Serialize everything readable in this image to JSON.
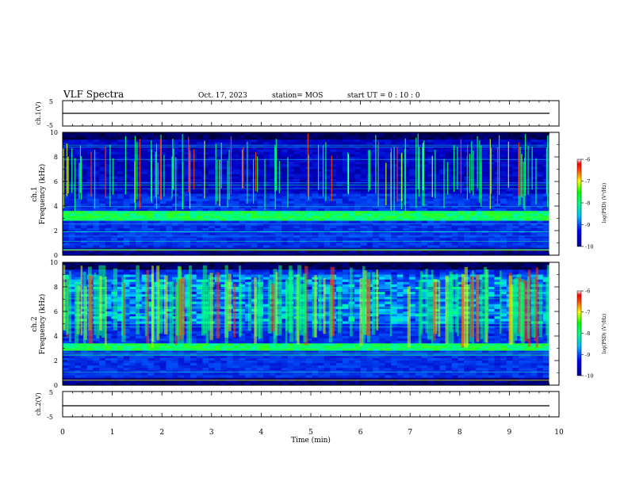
{
  "header": {
    "title": "VLF Spectra",
    "date": "Oct. 17, 2023",
    "station": "station= MOS",
    "start": "start  UT =   0 : 10 : 0"
  },
  "chart_data": [
    {
      "type": "line",
      "ylabel": "ch.1(V)",
      "ylim": [
        -5,
        5
      ],
      "yticks": [
        "5",
        "-5"
      ],
      "series": [
        {
          "x": [
            0,
            9.8
          ],
          "values": [
            0,
            0
          ]
        }
      ]
    },
    {
      "type": "heatmap",
      "ylabel_line1": "ch.1",
      "ylabel_line2": "Frequency (kHz)",
      "ylim": [
        0,
        10
      ],
      "yticks": [
        "0",
        "2",
        "4",
        "6",
        "8",
        "10"
      ],
      "colorbar": {
        "label": "log(PSD) (V²/Hz)",
        "range": [
          -10,
          -6
        ],
        "ticks": [
          "-6",
          "-7",
          "-8",
          "-9",
          "-10"
        ]
      },
      "features": {
        "strong_band_khz": [
          2.8,
          3.5
        ],
        "broadband_bursts_khz": [
          5.5,
          10
        ]
      }
    },
    {
      "type": "heatmap",
      "ylabel_line1": "ch.2",
      "ylabel_line2": "Frequency (kHz)",
      "ylim": [
        0,
        10
      ],
      "yticks": [
        "0",
        "2",
        "4",
        "6",
        "8",
        "10"
      ],
      "colorbar": {
        "label": "log(PSD) (V²/Hz)",
        "range": [
          -10,
          -6
        ],
        "ticks": [
          "-6",
          "-7",
          "-8",
          "-9",
          "-10"
        ]
      },
      "features": {
        "strong_band_khz": [
          2.9,
          3.4
        ],
        "emission_band_khz": [
          5,
          9
        ]
      }
    },
    {
      "type": "line",
      "ylabel": "ch.2(V)",
      "ylim": [
        -5,
        5
      ],
      "yticks": [
        "5",
        "-5"
      ],
      "series": [
        {
          "x": [
            0,
            9.8
          ],
          "values": [
            0,
            0
          ]
        }
      ]
    }
  ],
  "xaxis": {
    "label": "Time (min)",
    "range": [
      0,
      10
    ],
    "ticks": [
      "0",
      "1",
      "2",
      "3",
      "4",
      "5",
      "6",
      "7",
      "8",
      "9",
      "10"
    ]
  },
  "colormap": [
    "#000000",
    "#00008b",
    "#0000ff",
    "#1e90ff",
    "#00ffff",
    "#00ff00",
    "#ffff00",
    "#ff8c00",
    "#ff0000",
    "#ffffff"
  ]
}
